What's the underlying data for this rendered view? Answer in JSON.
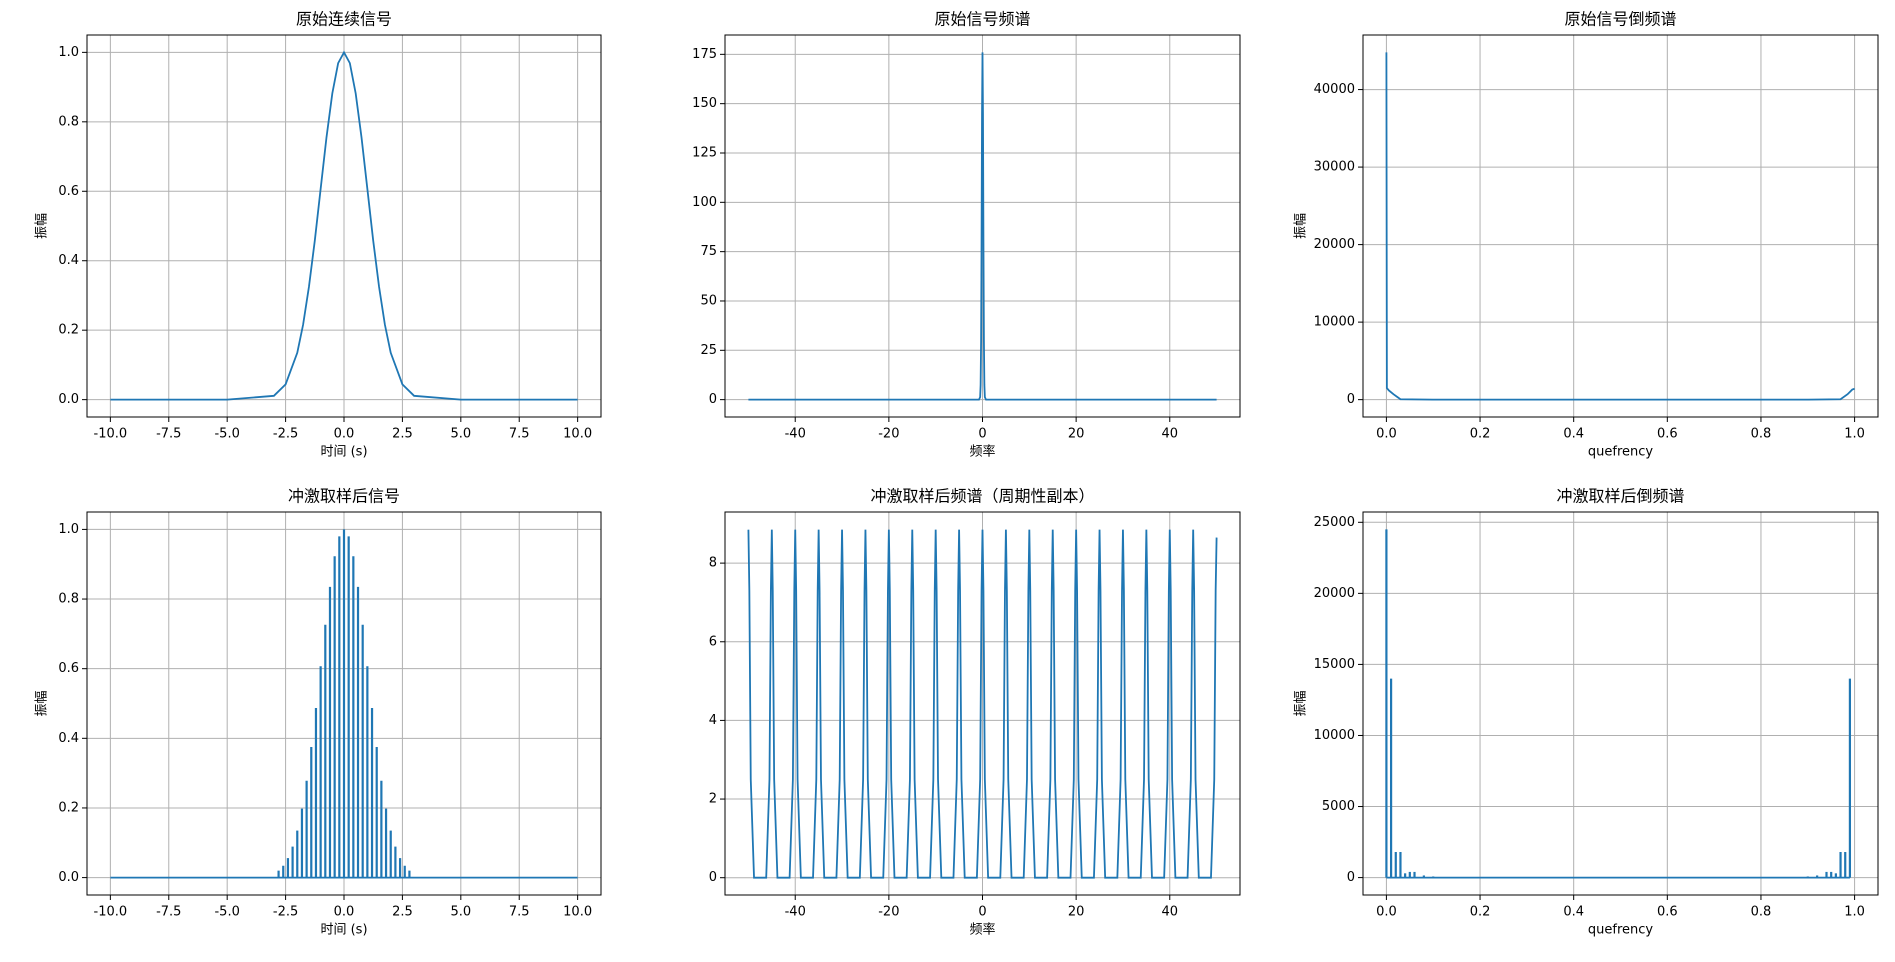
{
  "chart_data": [
    {
      "type": "line",
      "title": "原始连续信号",
      "xlabel": "时间 (s)",
      "ylabel": "振幅",
      "color": "#1f77b4",
      "grid": true,
      "x": [
        -10,
        -5,
        -3,
        -2.5,
        -2,
        -1.75,
        -1.5,
        -1.25,
        -1,
        -0.75,
        -0.5,
        -0.25,
        0,
        0.25,
        0.5,
        0.75,
        1,
        1.25,
        1.5,
        1.75,
        2,
        2.5,
        3,
        5,
        10
      ],
      "values": [
        0,
        0,
        0.011,
        0.044,
        0.135,
        0.216,
        0.325,
        0.458,
        0.607,
        0.755,
        0.882,
        0.969,
        1,
        0.969,
        0.882,
        0.755,
        0.607,
        0.458,
        0.325,
        0.216,
        0.135,
        0.044,
        0.011,
        0,
        0
      ],
      "xlim": [
        -11,
        11
      ],
      "xticks": [
        {
          "value": -10,
          "label": "-10.0"
        },
        {
          "value": -7.5,
          "label": "-7.5"
        },
        {
          "value": -5,
          "label": "-5.0"
        },
        {
          "value": -2.5,
          "label": "-2.5"
        },
        {
          "value": 0,
          "label": "0.0"
        },
        2.5,
        {
          "value": 5,
          "label": "5.0"
        },
        7.5,
        {
          "value": 10,
          "label": "10.0"
        }
      ],
      "ylim": [
        -0.05,
        1.05
      ],
      "yticks": [
        {
          "value": 0,
          "label": "0.0"
        },
        0.2,
        0.4,
        0.6,
        0.8,
        {
          "value": 1,
          "label": "1.0"
        }
      ]
    },
    {
      "type": "line",
      "title": "原始信号频谱",
      "xlabel": "频率",
      "color": "#1f77b4",
      "grid": true,
      "x": [
        -50,
        -0.75,
        -0.5,
        -0.4,
        -0.3,
        -0.2,
        -0.1,
        0,
        0.1,
        0.2,
        0.3,
        0.4,
        0.5,
        0.75,
        50
      ],
      "values": [
        0,
        0,
        1.3,
        7.5,
        29.8,
        79.7,
        144.5,
        176,
        144.5,
        79.7,
        29.8,
        7.5,
        1.3,
        0,
        0
      ],
      "xlim": [
        -55,
        55
      ],
      "xticks": [
        -40,
        -20,
        0,
        20,
        40
      ],
      "ylim": [
        -8.8,
        184.8
      ],
      "yticks": [
        0,
        25,
        50,
        75,
        100,
        125,
        150,
        175
      ]
    },
    {
      "type": "line",
      "title": "原始信号倒频谱",
      "xlabel": "quefrency",
      "ylabel": "振幅",
      "color": "#1f77b4",
      "grid": true,
      "x": [
        0,
        0.001,
        0.005,
        0.015,
        0.03,
        0.1,
        0.9,
        0.97,
        0.985,
        0.995,
        1
      ],
      "values": [
        44800,
        1500,
        1200,
        700,
        50,
        0,
        0,
        50,
        700,
        1300,
        1400
      ],
      "xlim": [
        -0.05,
        1.05
      ],
      "xticks": [
        {
          "value": 0,
          "label": "0.0"
        },
        0.2,
        0.4,
        0.6,
        0.8,
        {
          "value": 1,
          "label": "1.0"
        }
      ],
      "ylim": [
        -2240,
        47040
      ],
      "yticks": [
        0,
        10000,
        20000,
        30000,
        40000
      ]
    },
    {
      "type": "impulse",
      "title": "冲激取样后信号",
      "xlabel": "时间 (s)",
      "ylabel": "振幅",
      "color": "#1f77b4",
      "grid": true,
      "x": [
        -10,
        -2.8,
        -2.6,
        -2.4,
        -2.2,
        -2,
        -1.8,
        -1.6,
        -1.4,
        -1.2,
        -1,
        -0.8,
        -0.6,
        -0.4,
        -0.2,
        0,
        0.2,
        0.4,
        0.6,
        0.8,
        1,
        1.2,
        1.4,
        1.6,
        1.8,
        2,
        2.2,
        2.4,
        2.6,
        2.8,
        10
      ],
      "values": [
        0,
        0.02,
        0.034,
        0.056,
        0.089,
        0.135,
        0.198,
        0.278,
        0.375,
        0.487,
        0.607,
        0.726,
        0.835,
        0.923,
        0.98,
        1,
        0.98,
        0.923,
        0.835,
        0.726,
        0.607,
        0.487,
        0.375,
        0.278,
        0.198,
        0.135,
        0.089,
        0.056,
        0.034,
        0.02,
        0
      ],
      "xlim": [
        -11,
        11
      ],
      "xticks": [
        {
          "value": -10,
          "label": "-10.0"
        },
        {
          "value": -7.5,
          "label": "-7.5"
        },
        {
          "value": -5,
          "label": "-5.0"
        },
        {
          "value": -2.5,
          "label": "-2.5"
        },
        {
          "value": 0,
          "label": "0.0"
        },
        2.5,
        {
          "value": 5,
          "label": "5.0"
        },
        7.5,
        {
          "value": 10,
          "label": "10.0"
        }
      ],
      "ylim": [
        -0.05,
        1.05
      ],
      "yticks": [
        {
          "value": 0,
          "label": "0.0"
        },
        0.2,
        0.4,
        0.6,
        0.8,
        {
          "value": 1,
          "label": "1.0"
        }
      ]
    },
    {
      "type": "line",
      "title": "冲激取样后频谱（周期性副本）",
      "xlabel": "频率",
      "color": "#1f77b4",
      "grid": true,
      "x": [
        -50,
        -49.8,
        -49.5,
        -48.8,
        -46.2,
        -45.5,
        -45.2,
        -45,
        -44.8,
        -44.5,
        -43.8,
        -41.2,
        -40.5,
        -40.2,
        -40,
        -39.8,
        -39.5,
        -38.8,
        -36.2,
        -35.5,
        -35.2,
        -35,
        -34.8,
        -34.5,
        -33.8,
        -31.2,
        -30.5,
        -30.2,
        -30,
        -29.8,
        -29.5,
        -28.8,
        -26.2,
        -25.5,
        -25.2,
        -25,
        -24.8,
        -24.5,
        -23.8,
        -21.2,
        -20.5,
        -20.2,
        -20,
        -19.8,
        -19.5,
        -18.8,
        -16.2,
        -15.5,
        -15.2,
        -15,
        -14.8,
        -14.5,
        -13.8,
        -11.2,
        -10.5,
        -10.2,
        -10,
        -9.8,
        -9.5,
        -8.8,
        -6.2,
        -5.5,
        -5.2,
        -5,
        -4.8,
        -4.5,
        -3.8,
        -1.2,
        -0.5,
        -0.2,
        0,
        0.2,
        0.5,
        1.2,
        3.8,
        4.5,
        4.8,
        5,
        5.2,
        5.5,
        6.2,
        8.8,
        9.5,
        9.8,
        10,
        10.2,
        10.5,
        11.2,
        13.8,
        14.5,
        14.8,
        15,
        15.2,
        15.5,
        16.2,
        18.8,
        19.5,
        19.8,
        20,
        20.2,
        20.5,
        21.2,
        23.8,
        24.5,
        24.8,
        25,
        25.2,
        25.5,
        26.2,
        28.8,
        29.5,
        29.8,
        30,
        30.2,
        30.5,
        31.2,
        33.8,
        34.5,
        34.8,
        35,
        35.2,
        35.5,
        36.2,
        38.8,
        39.5,
        39.8,
        40,
        40.2,
        40.5,
        41.2,
        43.8,
        44.5,
        44.8,
        45,
        45.2,
        45.5,
        46.2,
        48.8,
        49.5,
        49.8,
        50
      ],
      "values": [
        8.85,
        7.3,
        2.5,
        0,
        0,
        2.5,
        7.3,
        8.85,
        7.3,
        2.5,
        0,
        0,
        2.5,
        7.3,
        8.85,
        7.3,
        2.5,
        0,
        0,
        2.5,
        7.3,
        8.85,
        7.3,
        2.5,
        0,
        0,
        2.5,
        7.3,
        8.85,
        7.3,
        2.5,
        0,
        0,
        2.5,
        7.3,
        8.85,
        7.3,
        2.5,
        0,
        0,
        2.5,
        7.3,
        8.85,
        7.3,
        2.5,
        0,
        0,
        2.5,
        7.3,
        8.85,
        7.3,
        2.5,
        0,
        0,
        2.5,
        7.3,
        8.85,
        7.3,
        2.5,
        0,
        0,
        2.5,
        7.3,
        8.85,
        7.3,
        2.5,
        0,
        0,
        2.5,
        7.3,
        8.85,
        7.3,
        2.5,
        0,
        0,
        2.5,
        7.3,
        8.85,
        7.3,
        2.5,
        0,
        0,
        2.5,
        7.3,
        8.85,
        7.3,
        2.5,
        0,
        0,
        2.5,
        7.3,
        8.85,
        7.3,
        2.5,
        0,
        0,
        2.5,
        7.3,
        8.85,
        7.3,
        2.5,
        0,
        0,
        2.5,
        7.3,
        8.85,
        7.3,
        2.5,
        0,
        0,
        2.5,
        7.3,
        8.85,
        7.3,
        2.5,
        0,
        0,
        2.5,
        7.3,
        8.85,
        7.3,
        2.5,
        0,
        0,
        2.5,
        7.3,
        8.85,
        7.3,
        2.5,
        0,
        0,
        2.5,
        7.3,
        8.85,
        7.3,
        2.5,
        0,
        0,
        2.5,
        7.3,
        8.65
      ],
      "xlim": [
        -55,
        55
      ],
      "xticks": [
        -40,
        -20,
        0,
        20,
        40
      ],
      "ylim": [
        -0.44,
        9.3
      ],
      "yticks": [
        0,
        2,
        4,
        6,
        8
      ]
    },
    {
      "type": "impulse",
      "title": "冲激取样后倒频谱",
      "xlabel": "quefrency",
      "ylabel": "振幅",
      "color": "#1f77b4",
      "grid": true,
      "x": [
        0,
        0.01,
        0.02,
        0.03,
        0.04,
        0.05,
        0.06,
        0.08,
        0.1,
        0.9,
        0.92,
        0.94,
        0.95,
        0.96,
        0.97,
        0.98,
        0.99
      ],
      "values": [
        24500,
        14000,
        1800,
        1800,
        300,
        400,
        400,
        150,
        80,
        80,
        150,
        400,
        400,
        300,
        1800,
        1800,
        14000
      ],
      "xlim": [
        -0.05,
        1.05
      ],
      "xticks": [
        {
          "value": 0,
          "label": "0.0"
        },
        0.2,
        0.4,
        0.6,
        0.8,
        {
          "value": 1,
          "label": "1.0"
        }
      ],
      "ylim": [
        -1225,
        25725
      ],
      "yticks": [
        0,
        5000,
        10000,
        15000,
        20000,
        25000
      ]
    }
  ]
}
